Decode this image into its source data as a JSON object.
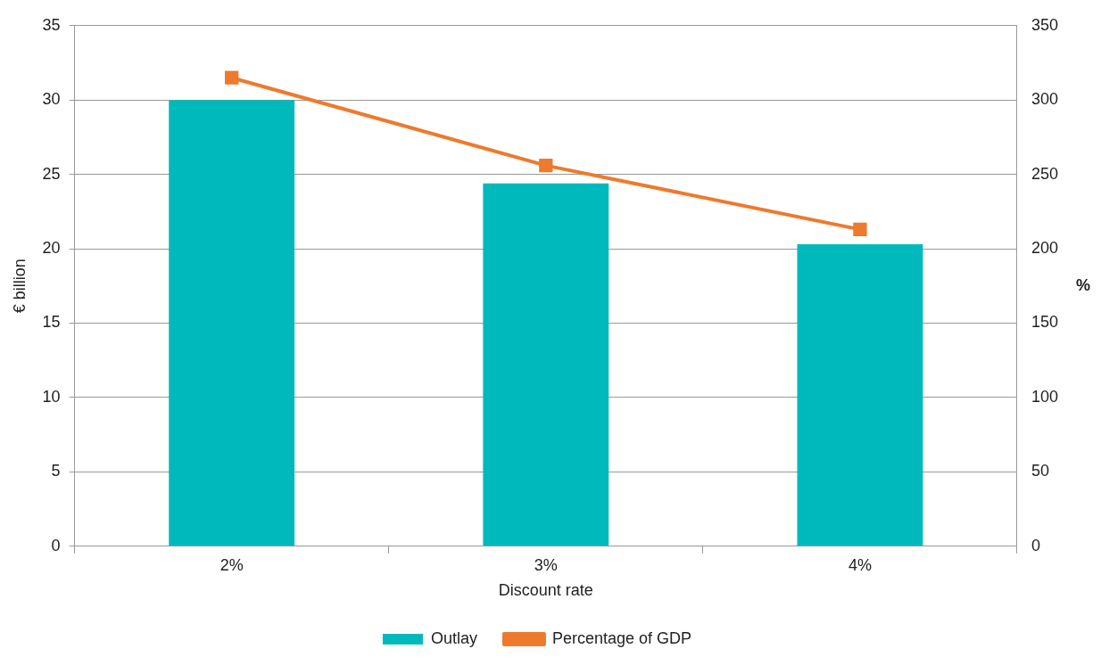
{
  "chart_data": {
    "type": "bar",
    "xlabel": "Discount rate",
    "ylabel": "€ billion",
    "y2label": "%",
    "categories": [
      "2%",
      "3%",
      "4%"
    ],
    "series": [
      {
        "name": "Outlay",
        "color": "#00b9bc",
        "values": [
          30.0,
          24.4,
          20.3
        ]
      },
      {
        "name": "Percentage of GDP",
        "type": "line",
        "axis": "y2",
        "color": "#ee7a2d",
        "marker": "square",
        "values": [
          315,
          256,
          213
        ]
      }
    ],
    "ylim": [
      0,
      35
    ],
    "yticks": [
      0,
      5,
      10,
      15,
      20,
      25,
      30,
      35
    ],
    "y2lim": [
      0,
      350
    ],
    "y2ticks": [
      0,
      50,
      100,
      150,
      200,
      250,
      300,
      350
    ],
    "grid": "y",
    "legend": "bottom"
  }
}
